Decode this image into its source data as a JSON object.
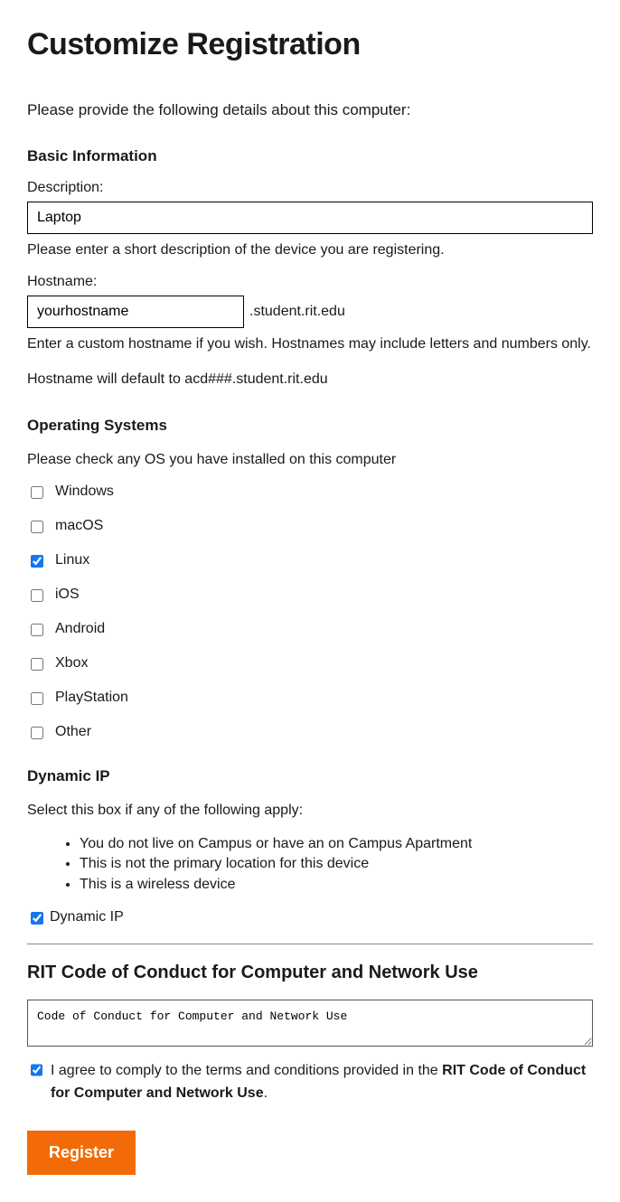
{
  "page_title": "Customize Registration",
  "intro": "Please provide the following details about this computer:",
  "sections": {
    "basic_info": {
      "heading": "Basic Information",
      "description_label": "Description:",
      "description_value": "Laptop",
      "description_hint": "Please enter a short description of the device you are registering.",
      "hostname_label": "Hostname:",
      "hostname_value": "yourhostname",
      "hostname_suffix": ".student.rit.edu",
      "hostname_hint1": "Enter a custom hostname if you wish. Hostnames may include letters and numbers only.",
      "hostname_hint2": "Hostname will default to acd###.student.rit.edu"
    },
    "os": {
      "heading": "Operating Systems",
      "prompt": "Please check any OS you have installed on this computer",
      "items": [
        {
          "label": "Windows",
          "checked": false
        },
        {
          "label": "macOS",
          "checked": false
        },
        {
          "label": "Linux",
          "checked": true
        },
        {
          "label": "iOS",
          "checked": false
        },
        {
          "label": "Android",
          "checked": false
        },
        {
          "label": "Xbox",
          "checked": false
        },
        {
          "label": "PlayStation",
          "checked": false
        },
        {
          "label": "Other",
          "checked": false
        }
      ]
    },
    "dynamic_ip": {
      "heading": "Dynamic IP",
      "prompt": "Select this box if any of the following apply:",
      "bullets": [
        "You do not live on Campus or have an on Campus Apartment",
        "This is not the primary location for this device",
        "This is a wireless device"
      ],
      "checkbox_label": "Dynamic IP",
      "checked": true
    },
    "coc": {
      "heading": "RIT Code of Conduct for Computer and Network Use",
      "textarea_value": "Code of Conduct for Computer and Network Use",
      "agree_prefix": "I agree to comply to the terms and conditions provided in the ",
      "agree_bold": "RIT Code of Conduct for Computer and Network Use",
      "agree_suffix": ".",
      "agree_checked": true
    }
  },
  "register_label": "Register",
  "colors": {
    "accent_button": "#f36b08",
    "checkbox_accent": "#1477f0"
  }
}
